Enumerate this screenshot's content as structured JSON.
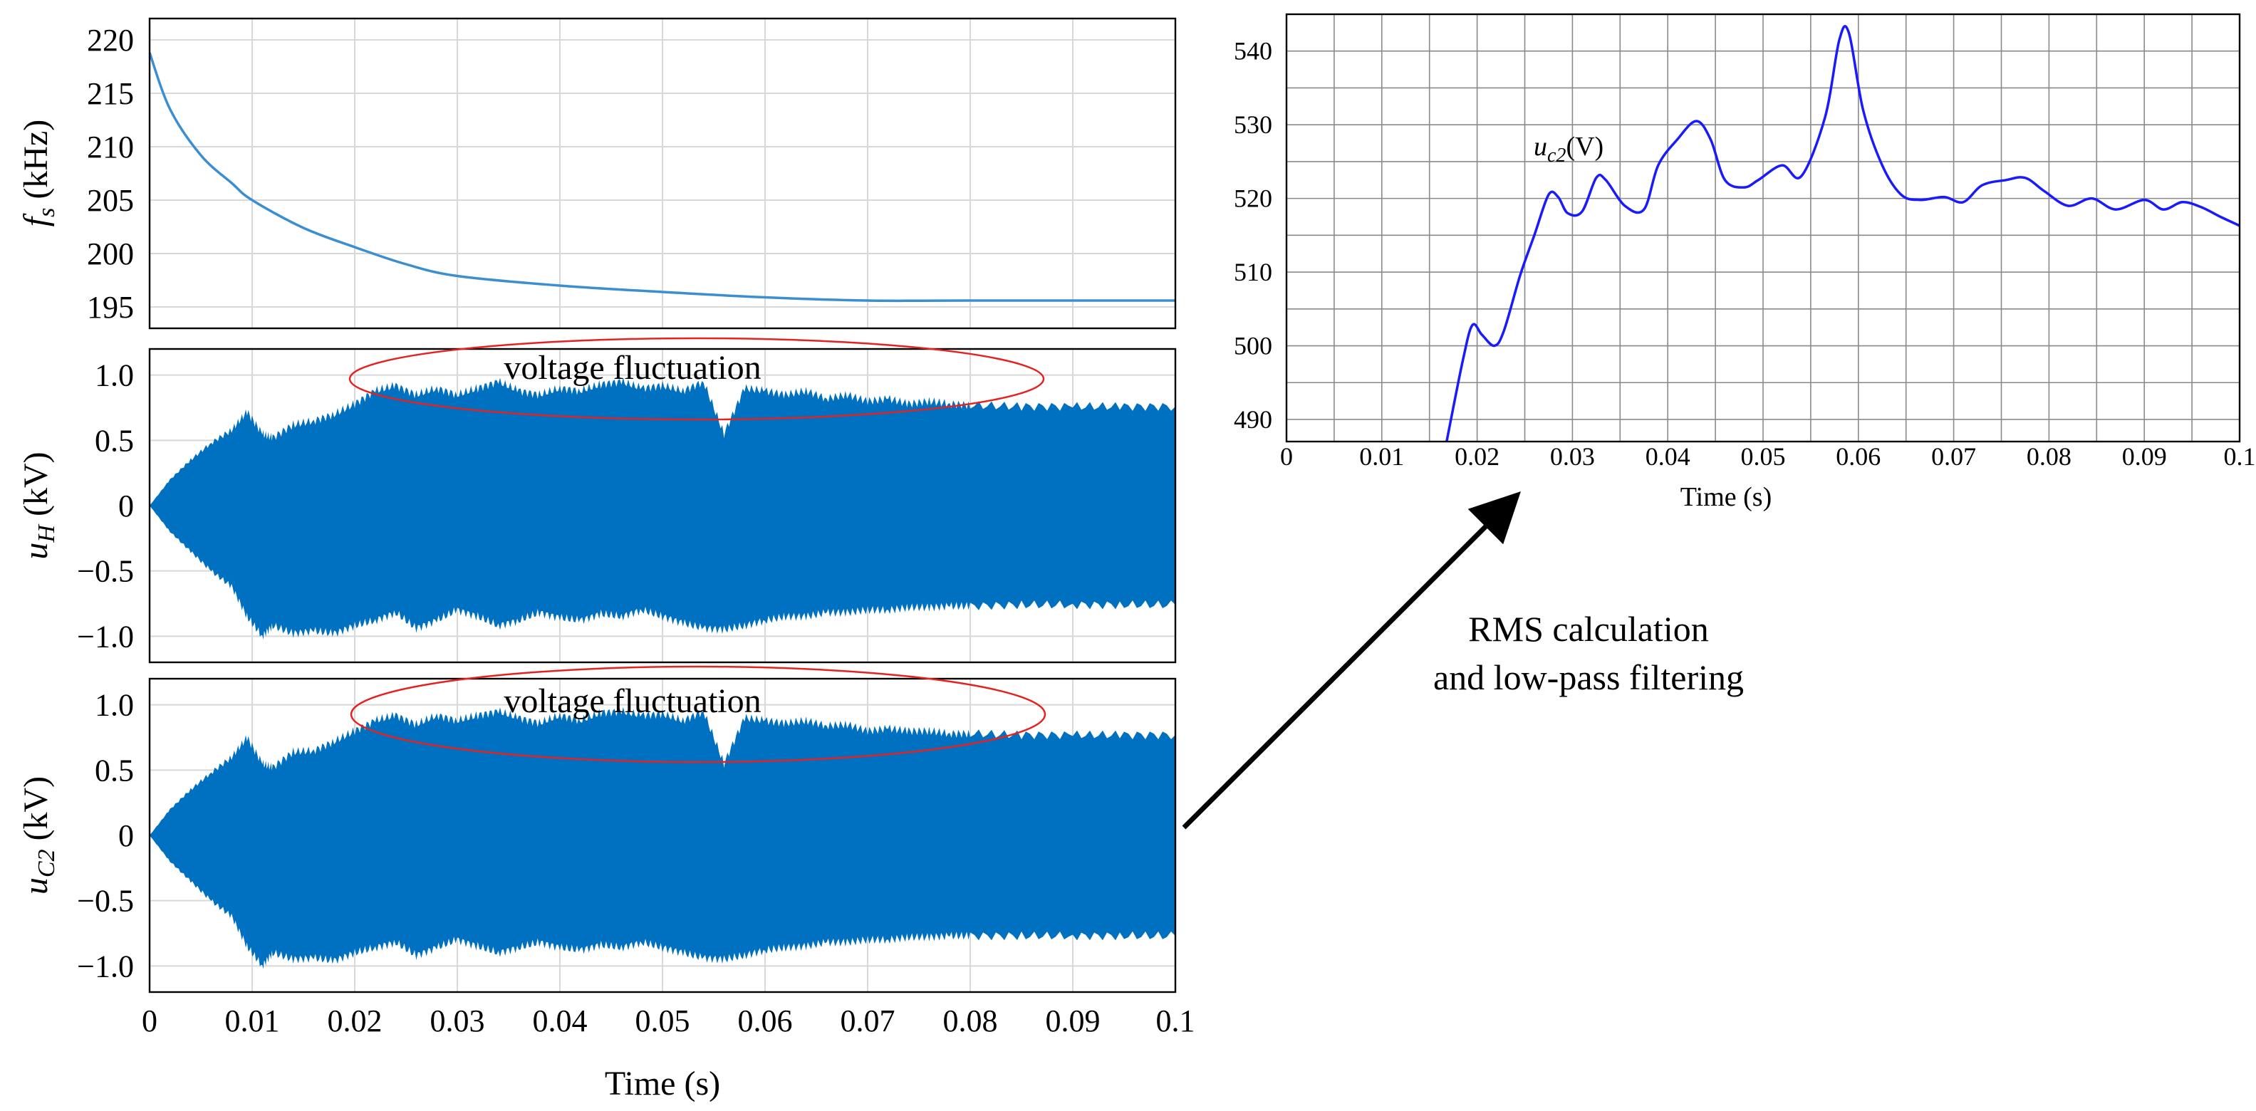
{
  "chart_data": [
    {
      "id": "fs",
      "type": "line",
      "ylabel": {
        "var": "f",
        "sub": "s",
        "unit": " (kHz)"
      },
      "xlim": [
        0,
        0.1
      ],
      "ylim": [
        193,
        222
      ],
      "yticks": [
        195,
        200,
        205,
        210,
        215,
        220
      ],
      "ytick_labels": [
        "195",
        "200",
        "205",
        "210",
        "215",
        "220"
      ],
      "grid": true,
      "color": "#3b8fd0",
      "series": [
        {
          "x": [
            0,
            0.002,
            0.005,
            0.008,
            0.01,
            0.015,
            0.02,
            0.025,
            0.03,
            0.04,
            0.05,
            0.06,
            0.07,
            0.08,
            0.1
          ],
          "y": [
            218.8,
            213.5,
            209.2,
            206.6,
            205.0,
            202.4,
            200.6,
            199.0,
            197.9,
            197.0,
            196.4,
            195.9,
            195.6,
            195.6,
            195.6
          ]
        }
      ]
    },
    {
      "id": "uH",
      "type": "area",
      "ylabel": {
        "var": "u",
        "sub": "H",
        "unit": " (kV)"
      },
      "xlim": [
        0,
        0.1
      ],
      "ylim": [
        -1.2,
        1.2
      ],
      "yticks": [
        -1.0,
        -0.5,
        0,
        0.5,
        1.0
      ],
      "ytick_labels": [
        "−1.0",
        "−0.5",
        "0",
        "0.5",
        "1.0"
      ],
      "grid": true,
      "color": "#0070c0",
      "annotation": "voltage fluctuation",
      "envelope": {
        "x": [
          0,
          0.002,
          0.004,
          0.006,
          0.008,
          0.0095,
          0.011,
          0.012,
          0.014,
          0.016,
          0.018,
          0.02,
          0.022,
          0.024,
          0.026,
          0.028,
          0.03,
          0.032,
          0.034,
          0.036,
          0.038,
          0.04,
          0.042,
          0.044,
          0.046,
          0.048,
          0.05,
          0.052,
          0.054,
          0.056,
          0.058,
          0.06,
          0.062,
          0.064,
          0.066,
          0.068,
          0.07,
          0.072,
          0.074,
          0.076,
          0.078,
          0.08,
          0.085,
          0.09,
          0.095,
          0.1
        ],
        "upper": [
          0,
          0.2,
          0.35,
          0.48,
          0.58,
          0.72,
          0.55,
          0.52,
          0.62,
          0.65,
          0.7,
          0.78,
          0.88,
          0.92,
          0.85,
          0.9,
          0.85,
          0.9,
          0.95,
          0.88,
          0.85,
          0.9,
          0.88,
          0.93,
          0.95,
          0.9,
          0.92,
          0.88,
          0.95,
          0.55,
          0.9,
          0.88,
          0.85,
          0.88,
          0.82,
          0.85,
          0.8,
          0.82,
          0.78,
          0.8,
          0.78,
          0.77,
          0.76,
          0.76,
          0.76,
          0.76
        ],
        "lower": [
          0,
          -0.2,
          -0.35,
          -0.5,
          -0.62,
          -0.85,
          -1.0,
          -0.92,
          -0.98,
          -0.96,
          -0.98,
          -0.92,
          -0.88,
          -0.82,
          -0.94,
          -0.88,
          -0.8,
          -0.85,
          -0.92,
          -0.88,
          -0.82,
          -0.86,
          -0.88,
          -0.83,
          -0.85,
          -0.8,
          -0.85,
          -0.9,
          -0.94,
          -0.95,
          -0.92,
          -0.88,
          -0.85,
          -0.85,
          -0.82,
          -0.82,
          -0.8,
          -0.8,
          -0.78,
          -0.78,
          -0.77,
          -0.77,
          -0.76,
          -0.76,
          -0.76,
          -0.76
        ]
      }
    },
    {
      "id": "uC2",
      "type": "area",
      "ylabel": {
        "var": "u",
        "sub": "C2",
        "unit": " (kV)"
      },
      "xlim": [
        0,
        0.1
      ],
      "ylim": [
        -1.2,
        1.2
      ],
      "yticks": [
        -1.0,
        -0.5,
        0,
        0.5,
        1.0
      ],
      "ytick_labels": [
        "−1.0",
        "−0.5",
        "0",
        "0.5",
        "1.0"
      ],
      "xticks": [
        0,
        0.01,
        0.02,
        0.03,
        0.04,
        0.05,
        0.06,
        0.07,
        0.08,
        0.09,
        0.1
      ],
      "xtick_labels": [
        "0",
        "0.01",
        "0.02",
        "0.03",
        "0.04",
        "0.05",
        "0.06",
        "0.07",
        "0.08",
        "0.09",
        "0.1"
      ],
      "xlabel": "Time (s)",
      "grid": true,
      "color": "#0070c0",
      "annotation": "voltage fluctuation",
      "envelope": {
        "x": [
          0,
          0.002,
          0.004,
          0.006,
          0.008,
          0.0095,
          0.011,
          0.012,
          0.014,
          0.016,
          0.018,
          0.02,
          0.022,
          0.024,
          0.026,
          0.028,
          0.03,
          0.032,
          0.034,
          0.036,
          0.038,
          0.04,
          0.042,
          0.044,
          0.046,
          0.048,
          0.05,
          0.052,
          0.054,
          0.056,
          0.058,
          0.06,
          0.062,
          0.064,
          0.066,
          0.068,
          0.07,
          0.072,
          0.074,
          0.076,
          0.078,
          0.08,
          0.085,
          0.09,
          0.095,
          0.1
        ],
        "upper": [
          0,
          0.2,
          0.35,
          0.48,
          0.6,
          0.75,
          0.55,
          0.52,
          0.64,
          0.65,
          0.72,
          0.8,
          0.88,
          0.92,
          0.85,
          0.92,
          0.88,
          0.92,
          0.95,
          0.9,
          0.86,
          0.92,
          0.88,
          0.94,
          0.95,
          0.92,
          0.93,
          0.88,
          0.95,
          0.55,
          0.9,
          0.88,
          0.86,
          0.88,
          0.84,
          0.85,
          0.8,
          0.82,
          0.8,
          0.8,
          0.78,
          0.78,
          0.77,
          0.77,
          0.77,
          0.77
        ],
        "lower": [
          0,
          -0.2,
          -0.35,
          -0.5,
          -0.62,
          -0.85,
          -1.0,
          -0.9,
          -0.95,
          -0.94,
          -0.96,
          -0.9,
          -0.86,
          -0.82,
          -0.92,
          -0.86,
          -0.8,
          -0.85,
          -0.9,
          -0.86,
          -0.82,
          -0.86,
          -0.88,
          -0.84,
          -0.86,
          -0.82,
          -0.86,
          -0.9,
          -0.94,
          -0.95,
          -0.92,
          -0.88,
          -0.86,
          -0.85,
          -0.82,
          -0.82,
          -0.8,
          -0.8,
          -0.78,
          -0.78,
          -0.77,
          -0.77,
          -0.77,
          -0.77,
          -0.77,
          -0.77
        ]
      }
    },
    {
      "id": "uc2_rms",
      "type": "line",
      "annotation": {
        "var": "u",
        "sub": "c2",
        "unit": "(V)"
      },
      "xlim": [
        0,
        0.1
      ],
      "ylim": [
        487,
        545
      ],
      "yticks": [
        490,
        500,
        510,
        520,
        530,
        540
      ],
      "ytick_labels": [
        "490",
        "500",
        "510",
        "520",
        "530",
        "540"
      ],
      "xticks": [
        0,
        0.01,
        0.02,
        0.03,
        0.04,
        0.05,
        0.06,
        0.07,
        0.08,
        0.09,
        0.1
      ],
      "xtick_labels": [
        "0",
        "0.01",
        "0.02",
        "0.03",
        "0.04",
        "0.05",
        "0.06",
        "0.07",
        "0.08",
        "0.09",
        "0.1"
      ],
      "xlabel": "Time (s)",
      "grid": true,
      "color": "#1a1aff",
      "series": [
        {
          "x": [
            0.0168,
            0.0185,
            0.0195,
            0.0205,
            0.0218,
            0.0228,
            0.0245,
            0.026,
            0.0275,
            0.0285,
            0.0295,
            0.031,
            0.0325,
            0.0335,
            0.0355,
            0.0375,
            0.039,
            0.041,
            0.043,
            0.0445,
            0.046,
            0.048,
            0.0495,
            0.052,
            0.054,
            0.0565,
            0.058,
            0.059,
            0.0605,
            0.0625,
            0.0645,
            0.0665,
            0.069,
            0.071,
            0.073,
            0.0755,
            0.0775,
            0.0795,
            0.082,
            0.0845,
            0.087,
            0.09,
            0.092,
            0.094,
            0.096,
            0.098,
            0.1
          ],
          "y": [
            487,
            498,
            502.8,
            501.5,
            500.0,
            502.0,
            509.5,
            515.0,
            520.5,
            520.2,
            518.0,
            518.2,
            522.8,
            522.5,
            519.0,
            518.5,
            524.5,
            528.0,
            530.5,
            528.0,
            522.5,
            521.5,
            522.5,
            524.5,
            523.0,
            531.0,
            541.5,
            542.5,
            532.0,
            524.5,
            520.5,
            519.8,
            520.2,
            519.5,
            521.8,
            522.5,
            522.8,
            521.0,
            519.0,
            520.0,
            518.5,
            519.8,
            518.5,
            519.5,
            518.8,
            517.5,
            516.3
          ]
        }
      ]
    }
  ],
  "arrow_text": [
    "RMS calculation",
    "and low-pass filtering"
  ]
}
